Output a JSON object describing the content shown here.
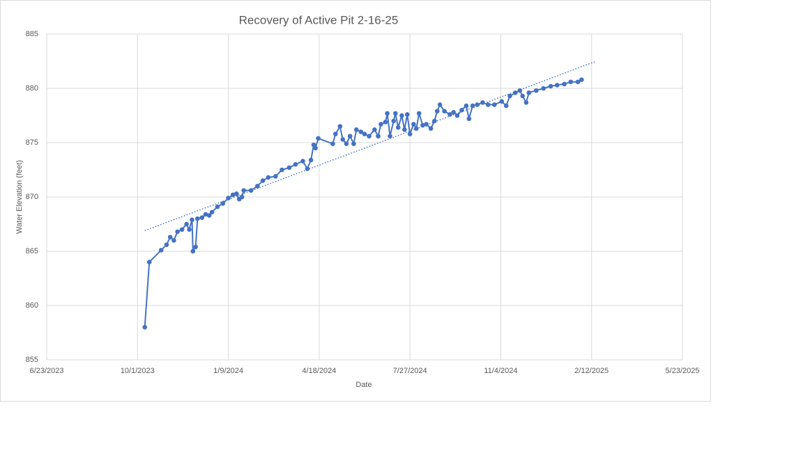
{
  "chart_data": {
    "type": "line",
    "title": "Recovery of Active Pit 2-16-25",
    "x_label": "Date",
    "y_label": "Water Elevation (feet)",
    "color": "#4472c4",
    "grid": true,
    "markers": true,
    "xlim": [
      "2023-06-23",
      "2025-05-23"
    ],
    "xticks": [
      {
        "value": "2023-06-23",
        "label": "6/23/2023"
      },
      {
        "value": "2023-10-01",
        "label": "10/1/2023"
      },
      {
        "value": "2024-01-09",
        "label": "1/9/2024"
      },
      {
        "value": "2024-04-18",
        "label": "4/18/2024"
      },
      {
        "value": "2024-07-27",
        "label": "7/27/2024"
      },
      {
        "value": "2024-11-04",
        "label": "11/4/2024"
      },
      {
        "value": "2025-02-12",
        "label": "2/12/2025"
      },
      {
        "value": "2025-05-23",
        "label": "5/23/2025"
      }
    ],
    "ylim": [
      855,
      885
    ],
    "yticks": [
      855,
      860,
      865,
      870,
      875,
      880,
      885
    ],
    "x": [
      "2023-10-09",
      "2023-10-14",
      "2023-10-27",
      "2023-11-02",
      "2023-11-06",
      "2023-11-10",
      "2023-11-14",
      "2023-11-19",
      "2023-11-24",
      "2023-11-27",
      "2023-11-30",
      "2023-12-01",
      "2023-12-04",
      "2023-12-06",
      "2023-12-11",
      "2023-12-15",
      "2023-12-19",
      "2023-12-22",
      "2023-12-28",
      "2024-01-03",
      "2024-01-09",
      "2024-01-14",
      "2024-01-18",
      "2024-01-21",
      "2024-01-24",
      "2024-01-26",
      "2024-02-03",
      "2024-02-10",
      "2024-02-16",
      "2024-02-22",
      "2024-03-01",
      "2024-03-08",
      "2024-03-16",
      "2024-03-23",
      "2024-03-31",
      "2024-04-05",
      "2024-04-09",
      "2024-04-12",
      "2024-04-14",
      "2024-04-17",
      "2024-05-03",
      "2024-05-06",
      "2024-05-11",
      "2024-05-14",
      "2024-05-18",
      "2024-05-22",
      "2024-05-26",
      "2024-05-29",
      "2024-06-03",
      "2024-06-07",
      "2024-06-12",
      "2024-06-18",
      "2024-06-22",
      "2024-06-25",
      "2024-06-30",
      "2024-07-02",
      "2024-07-05",
      "2024-07-09",
      "2024-07-11",
      "2024-07-14",
      "2024-07-18",
      "2024-07-21",
      "2024-07-24",
      "2024-07-27",
      "2024-07-31",
      "2024-08-03",
      "2024-08-06",
      "2024-08-10",
      "2024-08-14",
      "2024-08-19",
      "2024-08-23",
      "2024-08-26",
      "2024-08-29",
      "2024-09-03",
      "2024-09-09",
      "2024-09-13",
      "2024-09-17",
      "2024-09-22",
      "2024-09-27",
      "2024-09-30",
      "2024-10-04",
      "2024-10-09",
      "2024-10-15",
      "2024-10-21",
      "2024-10-28",
      "2024-11-05",
      "2024-11-10",
      "2024-11-14",
      "2024-11-20",
      "2024-11-25",
      "2024-11-28",
      "2024-12-02",
      "2024-12-05",
      "2024-12-13",
      "2024-12-21",
      "2024-12-29",
      "2025-01-05",
      "2025-01-13",
      "2025-01-20",
      "2025-01-28",
      "2025-02-01"
    ],
    "values": [
      858.0,
      864.0,
      865.1,
      865.6,
      866.3,
      866.0,
      866.8,
      867.0,
      867.5,
      867.0,
      867.9,
      865.0,
      865.4,
      868.0,
      868.1,
      868.4,
      868.3,
      868.6,
      869.1,
      869.4,
      869.9,
      870.2,
      870.3,
      869.8,
      870.0,
      870.6,
      870.6,
      871.0,
      871.5,
      871.8,
      871.9,
      872.5,
      872.7,
      873.0,
      873.3,
      872.6,
      873.4,
      874.8,
      874.5,
      875.4,
      874.9,
      875.8,
      876.5,
      875.3,
      874.9,
      875.6,
      874.9,
      876.2,
      876.0,
      875.8,
      875.6,
      876.2,
      875.6,
      876.7,
      876.9,
      877.7,
      875.6,
      877.0,
      877.7,
      876.4,
      877.5,
      876.2,
      877.6,
      875.8,
      876.7,
      876.3,
      877.7,
      876.6,
      876.7,
      876.3,
      877.0,
      877.9,
      878.5,
      877.9,
      877.6,
      877.8,
      877.5,
      878.0,
      878.4,
      877.2,
      878.4,
      878.5,
      878.7,
      878.5,
      878.5,
      878.8,
      878.4,
      879.3,
      879.6,
      879.8,
      879.3,
      878.7,
      879.6,
      879.8,
      880.0,
      880.2,
      880.3,
      880.4,
      880.6,
      880.6,
      880.8
    ],
    "trendline": {
      "x": [
        "2023-10-09",
        "2025-02-17"
      ],
      "values": [
        866.9,
        882.5
      ]
    }
  }
}
